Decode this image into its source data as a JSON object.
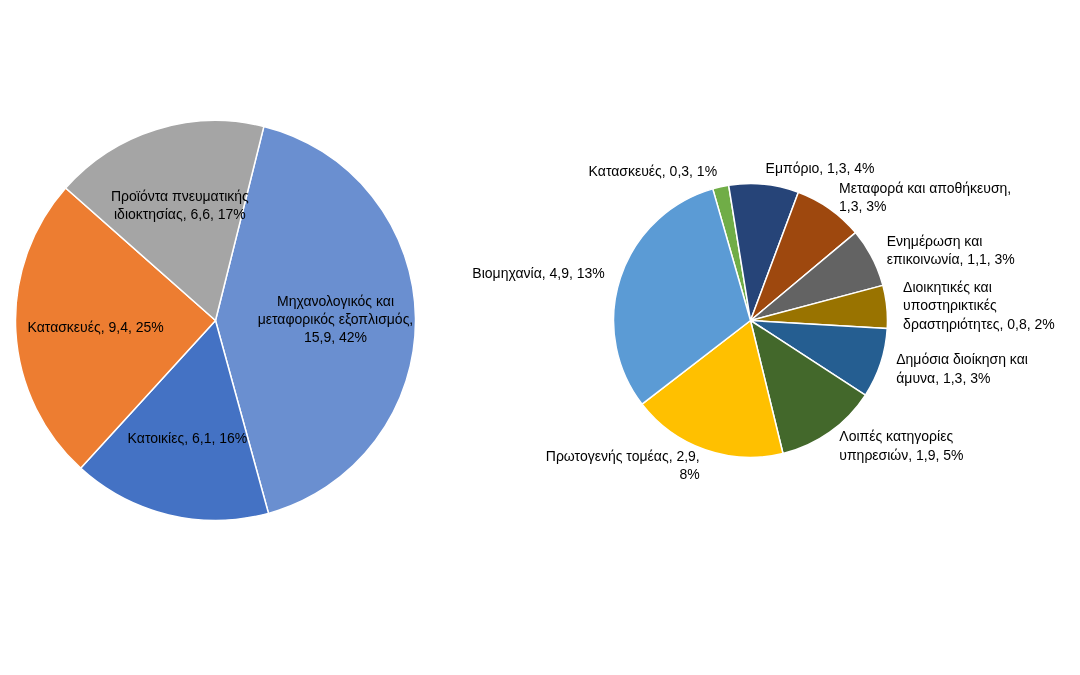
{
  "chart_data": [
    {
      "type": "pie",
      "categories": [
        "Μηχανολογικός και μεταφορικός εξοπλισμός",
        "Κατοικίες",
        "Κατασκευές",
        "Προϊόντα πνευματικής ιδιοκτησίας"
      ],
      "values": [
        15.9,
        6.1,
        9.4,
        6.6
      ],
      "colors": [
        "#6a8fd0",
        "#4472c4",
        "#ed7d31",
        "#a5a5a5"
      ],
      "value_labels": [
        ", 15,9, 42%",
        ", 6,1, 16%",
        ", 9,4, 25%",
        ", 6,6, 17%"
      ]
    },
    {
      "type": "pie",
      "categories": [
        "Κατασκευές",
        "Εμπόριο",
        "Μεταφορά και αποθήκευση",
        "Ενημέρωση και επικοινωνία",
        "Διοικητικές και υποστηρικτικές δραστηριότητες",
        "Δημόσια διοίκηση και άμυνα",
        "Λοιπές κατηγορίες υπηρεσιών",
        "Πρωτογενής τομέας",
        "Βιομηχανία"
      ],
      "values": [
        0.3,
        1.3,
        1.3,
        1.1,
        0.8,
        1.3,
        1.9,
        2.9,
        4.9
      ],
      "colors": [
        "#70ad47",
        "#264478",
        "#9e480e",
        "#636363",
        "#997300",
        "#255e91",
        "#43682b",
        "#ffc000",
        "#5b9bd5"
      ],
      "value_labels": [
        ", 0,3, 1%",
        ", 1,3, 4%",
        ", 1,3, 3%",
        ", 1,1, 3%",
        ", 0,8, 2%",
        ", 1,3, 3%",
        ", 1,9, 5%",
        ", 2,9, 8%",
        ", 4,9, 13%"
      ]
    }
  ]
}
